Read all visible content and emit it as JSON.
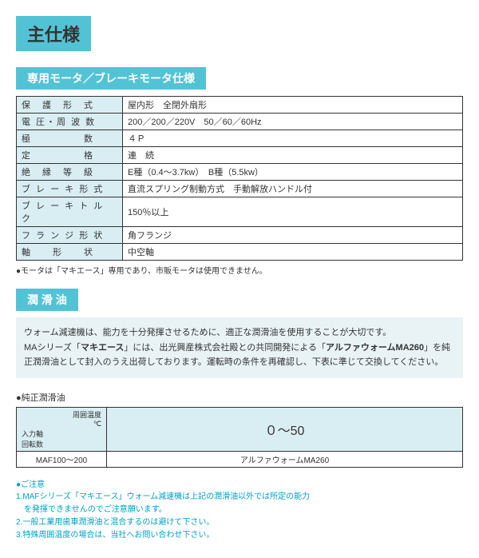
{
  "mainTitle": "主仕様",
  "section1": {
    "title": "専用モータ／ブレーキモータ仕様",
    "rows": [
      {
        "label": "保　護　形　式",
        "value": "屋内形　全閉外扇形"
      },
      {
        "label": "電 圧・周 波 数",
        "value": "200／200／220V　50／60／60Hz"
      },
      {
        "label": "極　　　　　数",
        "value": "４Ｐ"
      },
      {
        "label": "定　　　　　格",
        "value": "連　続"
      },
      {
        "label": "絶　縁　等　級",
        "value": "E種（0.4～3.7kw）　B種（5.5kw）"
      },
      {
        "label": "ブ レ ー キ 形 式",
        "value": "直流スプリング制動方式　手動解放ハンドル付"
      },
      {
        "label": "ブ レ ー キ ト ル ク",
        "value": "150％以上"
      },
      {
        "label": "フ ラ ン ジ 形 状",
        "value": "角フランジ"
      },
      {
        "label": "軸　　形　　状",
        "value": "中空軸"
      }
    ],
    "note": "●モータは「マキエース」専用であり、市販モータは使用できません。"
  },
  "section2": {
    "title": "潤 滑 油",
    "desc": "ウォーム減速機は、能力を十分発揮させるために、適正な潤滑油を使用することが大切です。\nMAシリーズ「マキエース」には、出光興産株式会社殿との共同開発による「アルファウォームMA260」を純正潤滑油として封入のうえ出荷しております。運転時の条件を再確認し、下表に準じて交換してください。",
    "lubHeading": "●純正潤滑油",
    "lubTable": {
      "corner1": "入力軸\n回転数",
      "corner2": "周囲温度\n℃",
      "header": "０～50",
      "rowLabel": "MAF100～200",
      "rowValue": "アルファウォームMA260"
    },
    "cautionH": "●ご注意",
    "cautions": [
      "1.MAFシリーズ「マキエース」ウォーム減速機は上記の潤滑油以外では所定の能力\n　を発揮できませんのでご注意願います。",
      "2.一般工業用歯車潤滑油と混合するのは避けて下さい。",
      "3.特殊周囲温度の場合は、当社へお問い合わせ下さい。"
    ]
  }
}
